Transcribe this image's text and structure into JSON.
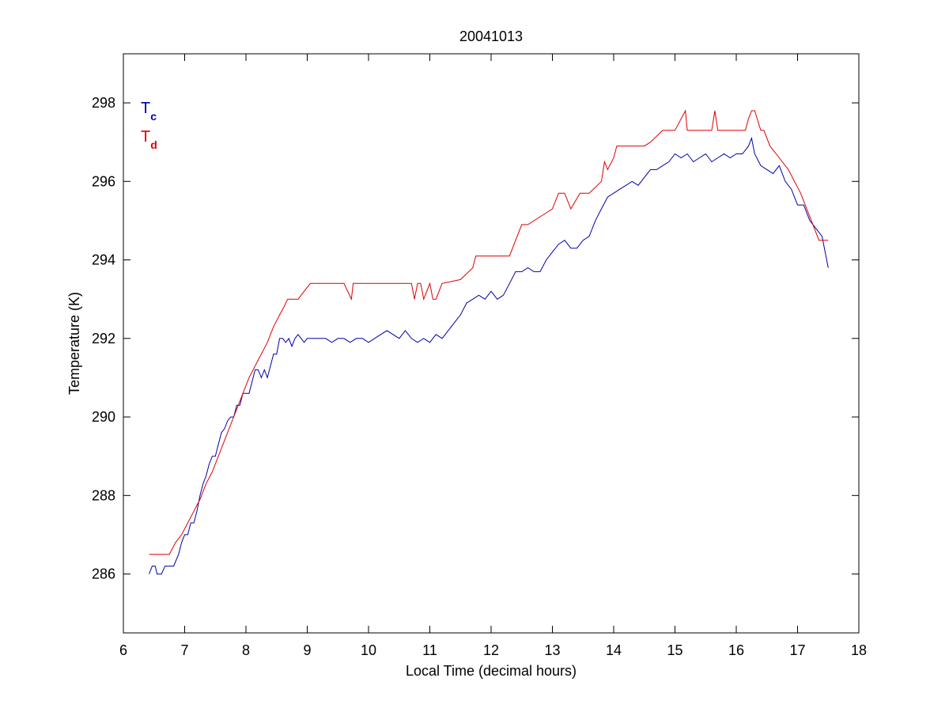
{
  "chart_data": {
    "type": "line",
    "title": "20041013",
    "xlabel": "Local Time (decimal hours)",
    "ylabel": "Temperature (K)",
    "xlim": [
      6,
      18
    ],
    "ylim": [
      284.5,
      299.25
    ],
    "xticks": [
      6,
      7,
      8,
      9,
      10,
      11,
      12,
      13,
      14,
      15,
      16,
      17,
      18
    ],
    "yticks": [
      286,
      288,
      290,
      292,
      294,
      296,
      298
    ],
    "grid": false,
    "legend_position": "top-left",
    "colors": {
      "Tc": "#0000aa",
      "Td": "#dd0000"
    },
    "series": [
      {
        "name": "Tc",
        "legend_main": "T",
        "legend_sub": "c",
        "color": "#0000aa",
        "x": [
          6.42,
          6.47,
          6.52,
          6.55,
          6.62,
          6.68,
          6.72,
          6.82,
          6.9,
          6.95,
          7.0,
          7.05,
          7.1,
          7.15,
          7.2,
          7.25,
          7.3,
          7.35,
          7.4,
          7.45,
          7.5,
          7.55,
          7.6,
          7.65,
          7.7,
          7.75,
          7.8,
          7.85,
          7.9,
          7.95,
          8.0,
          8.05,
          8.1,
          8.15,
          8.2,
          8.25,
          8.3,
          8.35,
          8.4,
          8.45,
          8.5,
          8.55,
          8.6,
          8.65,
          8.7,
          8.75,
          8.8,
          8.85,
          8.9,
          8.95,
          9.0,
          9.1,
          9.2,
          9.3,
          9.4,
          9.5,
          9.6,
          9.7,
          9.8,
          9.9,
          10.0,
          10.1,
          10.2,
          10.3,
          10.4,
          10.5,
          10.6,
          10.7,
          10.8,
          10.9,
          11.0,
          11.1,
          11.2,
          11.3,
          11.4,
          11.5,
          11.6,
          11.7,
          11.8,
          11.9,
          12.0,
          12.1,
          12.2,
          12.3,
          12.4,
          12.5,
          12.6,
          12.7,
          12.8,
          12.9,
          13.0,
          13.1,
          13.2,
          13.3,
          13.4,
          13.5,
          13.6,
          13.7,
          13.8,
          13.9,
          14.0,
          14.1,
          14.2,
          14.3,
          14.4,
          14.5,
          14.6,
          14.7,
          14.8,
          14.9,
          15.0,
          15.1,
          15.2,
          15.3,
          15.4,
          15.5,
          15.6,
          15.7,
          15.8,
          15.9,
          16.0,
          16.1,
          16.2,
          16.25,
          16.3,
          16.4,
          16.5,
          16.6,
          16.7,
          16.8,
          16.9,
          17.0,
          17.1,
          17.2,
          17.3,
          17.4,
          17.45,
          17.5
        ],
        "values": [
          286.0,
          286.2,
          286.2,
          286.0,
          286.0,
          286.2,
          286.2,
          286.2,
          286.5,
          286.8,
          287.0,
          287.0,
          287.3,
          287.3,
          287.6,
          288.0,
          288.3,
          288.5,
          288.8,
          289.0,
          289.0,
          289.3,
          289.6,
          289.7,
          289.9,
          290.0,
          290.0,
          290.3,
          290.3,
          290.6,
          290.6,
          290.6,
          290.9,
          291.2,
          291.2,
          291.0,
          291.2,
          291.0,
          291.3,
          291.6,
          291.6,
          292.0,
          292.0,
          291.9,
          292.0,
          291.8,
          292.0,
          292.1,
          292.0,
          291.9,
          292.0,
          292.0,
          292.0,
          292.0,
          291.9,
          292.0,
          292.0,
          291.9,
          292.0,
          292.0,
          291.9,
          292.0,
          292.1,
          292.2,
          292.1,
          292.0,
          292.2,
          292.0,
          291.9,
          292.0,
          291.9,
          292.1,
          292.0,
          292.2,
          292.4,
          292.6,
          292.9,
          293.0,
          293.1,
          293.0,
          293.2,
          293.0,
          293.1,
          293.4,
          293.7,
          293.7,
          293.8,
          293.7,
          293.7,
          294.0,
          294.2,
          294.4,
          294.5,
          294.3,
          294.3,
          294.5,
          294.6,
          295.0,
          295.3,
          295.6,
          295.7,
          295.8,
          295.9,
          296.0,
          295.9,
          296.1,
          296.3,
          296.3,
          296.4,
          296.5,
          296.7,
          296.6,
          296.7,
          296.5,
          296.6,
          296.7,
          296.5,
          296.6,
          296.7,
          296.6,
          296.7,
          296.7,
          296.9,
          297.1,
          296.7,
          296.4,
          296.3,
          296.2,
          296.4,
          296.0,
          295.8,
          295.4,
          295.4,
          295.0,
          294.8,
          294.6,
          294.2,
          293.8
        ]
      },
      {
        "name": "Td",
        "legend_main": "T",
        "legend_sub": "d",
        "color": "#dd0000",
        "x": [
          6.42,
          6.75,
          6.85,
          6.95,
          7.05,
          7.15,
          7.25,
          7.35,
          7.45,
          7.55,
          7.65,
          7.75,
          7.85,
          7.95,
          8.05,
          8.15,
          8.25,
          8.35,
          8.45,
          8.55,
          8.62,
          8.68,
          8.75,
          8.85,
          8.95,
          9.05,
          9.6,
          9.72,
          9.75,
          9.78,
          10.7,
          10.75,
          10.8,
          10.85,
          10.9,
          11.0,
          11.05,
          11.1,
          11.2,
          11.5,
          11.7,
          11.75,
          12.3,
          12.4,
          12.5,
          12.6,
          12.9,
          13.0,
          13.1,
          13.2,
          13.3,
          13.45,
          13.6,
          13.8,
          13.85,
          13.9,
          14.0,
          14.05,
          14.2,
          14.5,
          14.6,
          14.8,
          15.0,
          15.17,
          15.2,
          15.25,
          15.6,
          15.65,
          15.7,
          16.15,
          16.2,
          16.25,
          16.3,
          16.4,
          16.45,
          16.55,
          16.7,
          16.85,
          16.95,
          17.05,
          17.15,
          17.25,
          17.35,
          17.45,
          17.5
        ],
        "values": [
          286.5,
          286.5,
          286.8,
          287.0,
          287.3,
          287.6,
          287.9,
          288.3,
          288.6,
          289.0,
          289.4,
          289.8,
          290.2,
          290.6,
          291.0,
          291.3,
          291.6,
          291.9,
          292.3,
          292.6,
          292.8,
          293.0,
          293.0,
          293.0,
          293.2,
          293.4,
          293.4,
          293.0,
          293.4,
          293.4,
          293.4,
          293.0,
          293.4,
          293.4,
          293.0,
          293.4,
          293.0,
          293.0,
          293.4,
          293.5,
          293.8,
          294.1,
          294.1,
          294.5,
          294.9,
          294.9,
          295.2,
          295.3,
          295.7,
          295.7,
          295.3,
          295.7,
          295.7,
          296.0,
          296.5,
          296.3,
          296.6,
          296.9,
          296.9,
          296.9,
          297.0,
          297.3,
          297.3,
          297.8,
          297.3,
          297.3,
          297.3,
          297.8,
          297.3,
          297.3,
          297.6,
          297.8,
          297.8,
          297.3,
          297.3,
          296.9,
          296.6,
          296.3,
          296.0,
          295.7,
          295.3,
          294.9,
          294.5,
          294.5,
          294.5
        ]
      }
    ]
  }
}
